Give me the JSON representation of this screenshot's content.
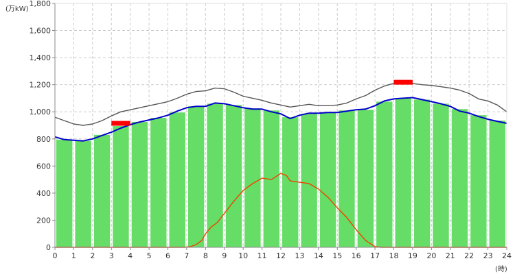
{
  "chart_data": {
    "type": "bar",
    "y_unit_label": "(万kW)",
    "x_unit_label": "(時)",
    "ylim": [
      0,
      1800
    ],
    "y_ticks": [
      "0",
      "200",
      "400",
      "600",
      "800",
      "1,000",
      "1,200",
      "1,400",
      "1,600",
      "1,800"
    ],
    "y_tick_values": [
      0,
      200,
      400,
      600,
      800,
      1000,
      1200,
      1400,
      1600,
      1800
    ],
    "x_ticks": [
      "0",
      "1",
      "2",
      "3",
      "4",
      "5",
      "6",
      "7",
      "8",
      "9",
      "10",
      "11",
      "12",
      "13",
      "14",
      "15",
      "16",
      "17",
      "18",
      "19",
      "20",
      "21",
      "22",
      "23",
      "24"
    ],
    "grid": true,
    "colors": {
      "bars": "#66dd66",
      "blue_line": "#0000cc",
      "gray_line": "#555555",
      "orange_line": "#ee4400",
      "peak_marker": "#ff0000",
      "grid": "#cccccc",
      "axis": "#888888"
    },
    "bars": {
      "hours": [
        0,
        1,
        2,
        3,
        4,
        5,
        6,
        7,
        8,
        9,
        10,
        11,
        12,
        13,
        14,
        15,
        16,
        17,
        18,
        19,
        20,
        21,
        22,
        23
      ],
      "values": [
        795,
        785,
        830,
        895,
        925,
        955,
        995,
        1040,
        1060,
        1050,
        1025,
        1010,
        960,
        985,
        995,
        1010,
        1015,
        1075,
        1100,
        1090,
        1060,
        1020,
        975,
        935
      ]
    },
    "series": [
      {
        "color_key": "blue_line",
        "points": [
          [
            0,
            815
          ],
          [
            0.5,
            795
          ],
          [
            1,
            790
          ],
          [
            1.5,
            785
          ],
          [
            2,
            800
          ],
          [
            2.5,
            825
          ],
          [
            3,
            850
          ],
          [
            3.5,
            880
          ],
          [
            4,
            905
          ],
          [
            4.5,
            925
          ],
          [
            5,
            940
          ],
          [
            5.5,
            955
          ],
          [
            6,
            975
          ],
          [
            6.5,
            1005
          ],
          [
            7,
            1030
          ],
          [
            7.5,
            1040
          ],
          [
            8,
            1040
          ],
          [
            8.5,
            1065
          ],
          [
            9,
            1060
          ],
          [
            9.5,
            1045
          ],
          [
            10,
            1030
          ],
          [
            10.5,
            1020
          ],
          [
            11,
            1020
          ],
          [
            11.5,
            1000
          ],
          [
            12,
            985
          ],
          [
            12.5,
            950
          ],
          [
            13,
            975
          ],
          [
            13.5,
            990
          ],
          [
            14,
            990
          ],
          [
            14.5,
            995
          ],
          [
            15,
            995
          ],
          [
            15.5,
            1005
          ],
          [
            16,
            1015
          ],
          [
            16.5,
            1020
          ],
          [
            17,
            1045
          ],
          [
            17.5,
            1080
          ],
          [
            18,
            1095
          ],
          [
            18.5,
            1100
          ],
          [
            19,
            1105
          ],
          [
            19.5,
            1090
          ],
          [
            20,
            1075
          ],
          [
            20.5,
            1060
          ],
          [
            21,
            1040
          ],
          [
            21.5,
            1005
          ],
          [
            22,
            990
          ],
          [
            22.5,
            965
          ],
          [
            23,
            945
          ],
          [
            23.5,
            930
          ],
          [
            24,
            915
          ]
        ]
      },
      {
        "color_key": "gray_line",
        "points": [
          [
            0,
            960
          ],
          [
            0.5,
            935
          ],
          [
            1,
            910
          ],
          [
            1.5,
            900
          ],
          [
            2,
            910
          ],
          [
            2.5,
            935
          ],
          [
            3,
            970
          ],
          [
            3.5,
            1000
          ],
          [
            4,
            1015
          ],
          [
            4.5,
            1030
          ],
          [
            5,
            1045
          ],
          [
            5.5,
            1060
          ],
          [
            6,
            1075
          ],
          [
            6.5,
            1100
          ],
          [
            7,
            1130
          ],
          [
            7.5,
            1150
          ],
          [
            8,
            1155
          ],
          [
            8.5,
            1175
          ],
          [
            9,
            1170
          ],
          [
            9.5,
            1145
          ],
          [
            10,
            1115
          ],
          [
            10.5,
            1100
          ],
          [
            11,
            1085
          ],
          [
            11.5,
            1065
          ],
          [
            12,
            1050
          ],
          [
            12.5,
            1035
          ],
          [
            13,
            1045
          ],
          [
            13.5,
            1055
          ],
          [
            14,
            1045
          ],
          [
            14.5,
            1045
          ],
          [
            15,
            1050
          ],
          [
            15.5,
            1065
          ],
          [
            16,
            1095
          ],
          [
            16.5,
            1120
          ],
          [
            17,
            1160
          ],
          [
            17.5,
            1190
          ],
          [
            18,
            1210
          ],
          [
            18.5,
            1210
          ],
          [
            19,
            1210
          ],
          [
            19.5,
            1200
          ],
          [
            20,
            1195
          ],
          [
            20.5,
            1185
          ],
          [
            21,
            1175
          ],
          [
            21.5,
            1160
          ],
          [
            22,
            1135
          ],
          [
            22.5,
            1095
          ],
          [
            23,
            1080
          ],
          [
            23.5,
            1050
          ],
          [
            24,
            1000
          ]
        ]
      },
      {
        "color_key": "orange_line",
        "points": [
          [
            0,
            0
          ],
          [
            6.9,
            0
          ],
          [
            7.2,
            5
          ],
          [
            7.5,
            20
          ],
          [
            7.8,
            50
          ],
          [
            8,
            100
          ],
          [
            8.3,
            150
          ],
          [
            8.6,
            180
          ],
          [
            9,
            250
          ],
          [
            9.5,
            340
          ],
          [
            10,
            420
          ],
          [
            10.5,
            470
          ],
          [
            11,
            510
          ],
          [
            11.5,
            500
          ],
          [
            12,
            545
          ],
          [
            12.3,
            530
          ],
          [
            12.5,
            490
          ],
          [
            13,
            480
          ],
          [
            13.5,
            470
          ],
          [
            14,
            430
          ],
          [
            14.5,
            370
          ],
          [
            15,
            290
          ],
          [
            15.5,
            220
          ],
          [
            16,
            130
          ],
          [
            16.5,
            50
          ],
          [
            17,
            5
          ],
          [
            17.3,
            0
          ],
          [
            24,
            0
          ]
        ]
      }
    ],
    "peak_markers": [
      {
        "x_start": 3,
        "x_end": 4,
        "y": 915
      },
      {
        "x_start": 18,
        "x_end": 19,
        "y": 1218
      }
    ]
  }
}
